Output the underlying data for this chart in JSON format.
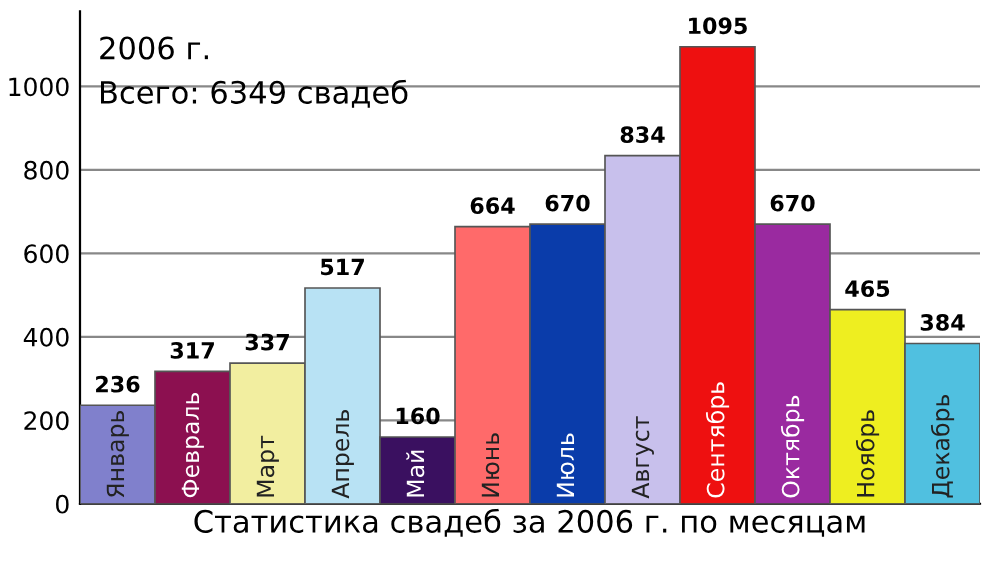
{
  "chart_data": {
    "type": "bar",
    "xlabel": "Статистика свадеб за 2006 г. по месяцам",
    "annotations": [
      "2006 г.",
      "Всего: 6349 свадеб"
    ],
    "categories": [
      "Январь",
      "Февраль",
      "Март",
      "Апрель",
      "Май",
      "Июнь",
      "Июль",
      "Август",
      "Сентябрь",
      "Октябрь",
      "Ноябрь",
      "Декабрь"
    ],
    "values": [
      236,
      317,
      337,
      517,
      160,
      664,
      670,
      834,
      1095,
      670,
      465,
      384
    ],
    "colors": [
      "#8080cc",
      "#8c1050",
      "#f2eea0",
      "#b8e2f4",
      "#3a1060",
      "#ff6a6a",
      "#0a3caa",
      "#c8c0ec",
      "#ee1010",
      "#9a2aa0",
      "#eeee20",
      "#50c0e0"
    ],
    "ylim": [
      0,
      1180
    ],
    "yticks": [
      0,
      200,
      400,
      600,
      800,
      1000
    ],
    "grid": "y",
    "data_labels": true
  }
}
